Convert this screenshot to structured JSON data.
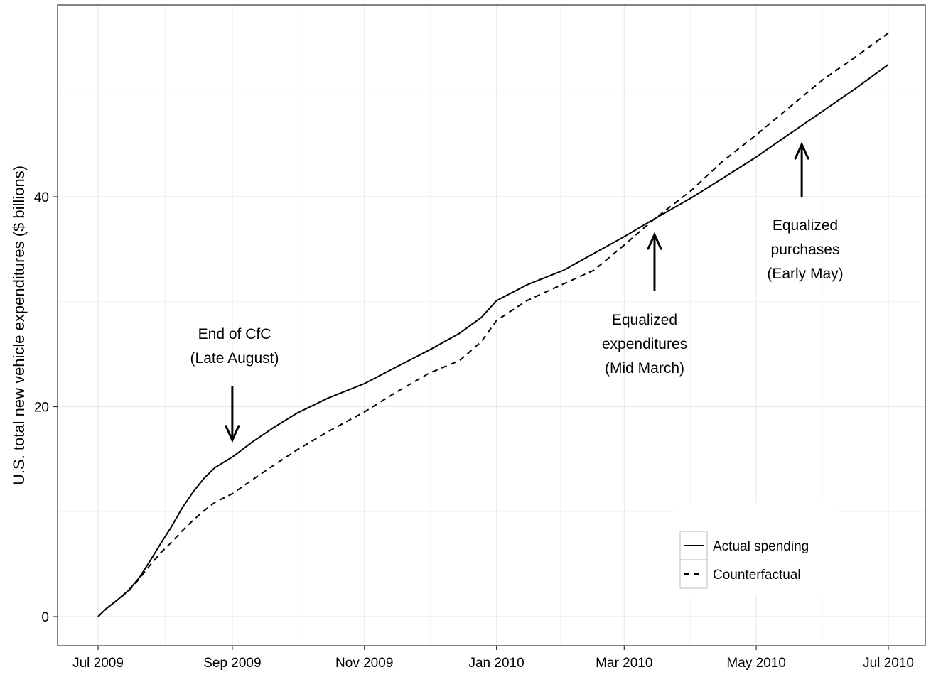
{
  "chart_data": {
    "type": "line",
    "title": "",
    "xlabel": "",
    "ylabel": "U.S. total new vehicle expenditures ($ billions)",
    "x_axis": {
      "type": "date",
      "range": [
        "2009-07-01",
        "2010-07-01"
      ],
      "ticks": [
        {
          "date": "2009-07-01",
          "label": "Jul 2009"
        },
        {
          "date": "2009-09-01",
          "label": "Sep 2009"
        },
        {
          "date": "2009-11-01",
          "label": "Nov 2009"
        },
        {
          "date": "2010-01-01",
          "label": "Jan 2010"
        },
        {
          "date": "2010-03-01",
          "label": "Mar 2010"
        },
        {
          "date": "2010-05-01",
          "label": "May 2010"
        },
        {
          "date": "2010-07-01",
          "label": "Jul 2010"
        }
      ]
    },
    "y_axis": {
      "range": [
        -2.8,
        58.2
      ],
      "ticks": [
        0,
        20,
        40
      ],
      "minor_grid": [
        10,
        30,
        50
      ]
    },
    "grid": true,
    "legend": {
      "position": "bottom-right"
    },
    "series": [
      {
        "name": "Actual spending",
        "style": "solid",
        "points": [
          [
            "2009-07-01",
            0
          ],
          [
            "2009-07-05",
            0.8
          ],
          [
            "2009-07-10",
            1.6
          ],
          [
            "2009-07-15",
            2.5
          ],
          [
            "2009-07-20",
            3.7
          ],
          [
            "2009-07-25",
            5.3
          ],
          [
            "2009-07-30",
            7.0
          ],
          [
            "2009-08-04",
            8.6
          ],
          [
            "2009-08-09",
            10.4
          ],
          [
            "2009-08-14",
            11.9
          ],
          [
            "2009-08-19",
            13.2
          ],
          [
            "2009-08-24",
            14.2
          ],
          [
            "2009-09-01",
            15.2
          ],
          [
            "2009-09-10",
            16.6
          ],
          [
            "2009-09-20",
            18.0
          ],
          [
            "2009-10-01",
            19.4
          ],
          [
            "2009-10-15",
            20.8
          ],
          [
            "2009-11-01",
            22.2
          ],
          [
            "2009-11-15",
            23.7
          ],
          [
            "2009-12-01",
            25.4
          ],
          [
            "2009-12-15",
            27.0
          ],
          [
            "2009-12-25",
            28.5
          ],
          [
            "2010-01-01",
            30.1
          ],
          [
            "2010-01-15",
            31.6
          ],
          [
            "2010-02-01",
            33.0
          ],
          [
            "2010-02-15",
            34.6
          ],
          [
            "2010-03-01",
            36.2
          ],
          [
            "2010-03-15",
            37.9
          ],
          [
            "2010-04-01",
            39.9
          ],
          [
            "2010-04-15",
            41.7
          ],
          [
            "2010-05-01",
            43.8
          ],
          [
            "2010-05-15",
            45.8
          ],
          [
            "2010-06-01",
            48.2
          ],
          [
            "2010-06-15",
            50.2
          ],
          [
            "2010-07-01",
            52.6
          ]
        ]
      },
      {
        "name": "Counterfactual",
        "style": "dashed",
        "points": [
          [
            "2009-07-01",
            0
          ],
          [
            "2009-07-05",
            0.8
          ],
          [
            "2009-07-10",
            1.6
          ],
          [
            "2009-07-15",
            2.4
          ],
          [
            "2009-07-20",
            3.6
          ],
          [
            "2009-07-25",
            4.9
          ],
          [
            "2009-07-30",
            6.1
          ],
          [
            "2009-08-04",
            7.1
          ],
          [
            "2009-08-09",
            8.2
          ],
          [
            "2009-08-14",
            9.2
          ],
          [
            "2009-08-19",
            10.1
          ],
          [
            "2009-08-24",
            10.9
          ],
          [
            "2009-09-01",
            11.7
          ],
          [
            "2009-09-10",
            13.0
          ],
          [
            "2009-09-20",
            14.4
          ],
          [
            "2009-10-01",
            15.9
          ],
          [
            "2009-10-15",
            17.6
          ],
          [
            "2009-11-01",
            19.5
          ],
          [
            "2009-11-15",
            21.3
          ],
          [
            "2009-12-01",
            23.2
          ],
          [
            "2009-12-15",
            24.4
          ],
          [
            "2009-12-25",
            26.2
          ],
          [
            "2010-01-01",
            28.2
          ],
          [
            "2010-01-15",
            30.1
          ],
          [
            "2010-02-01",
            31.7
          ],
          [
            "2010-02-15",
            33.0
          ],
          [
            "2010-03-01",
            35.4
          ],
          [
            "2010-03-15",
            37.9
          ],
          [
            "2010-04-01",
            40.6
          ],
          [
            "2010-04-15",
            43.3
          ],
          [
            "2010-05-01",
            45.9
          ],
          [
            "2010-05-15",
            48.3
          ],
          [
            "2010-06-01",
            51.2
          ],
          [
            "2010-06-15",
            53.2
          ],
          [
            "2010-07-01",
            55.6
          ]
        ]
      }
    ],
    "annotations": [
      {
        "name": "end-of-cfc",
        "lines": [
          "End of CfC",
          "(Late August)"
        ],
        "arrow": {
          "direction": "down",
          "date": "2009-09-01",
          "from_y": 22.0,
          "to_y": 16.8
        }
      },
      {
        "name": "equalized-expenditures",
        "lines": [
          "Equalized",
          "expenditures",
          "(Mid March)"
        ],
        "arrow": {
          "direction": "up",
          "date": "2010-03-15",
          "from_y": 31.0,
          "to_y": 36.4
        }
      },
      {
        "name": "equalized-purchases",
        "lines": [
          "Equalized",
          "purchases",
          "(Early May)"
        ],
        "arrow": {
          "direction": "up",
          "date": "2010-05-22",
          "from_y": 40.0,
          "to_y": 45.0
        }
      }
    ]
  }
}
